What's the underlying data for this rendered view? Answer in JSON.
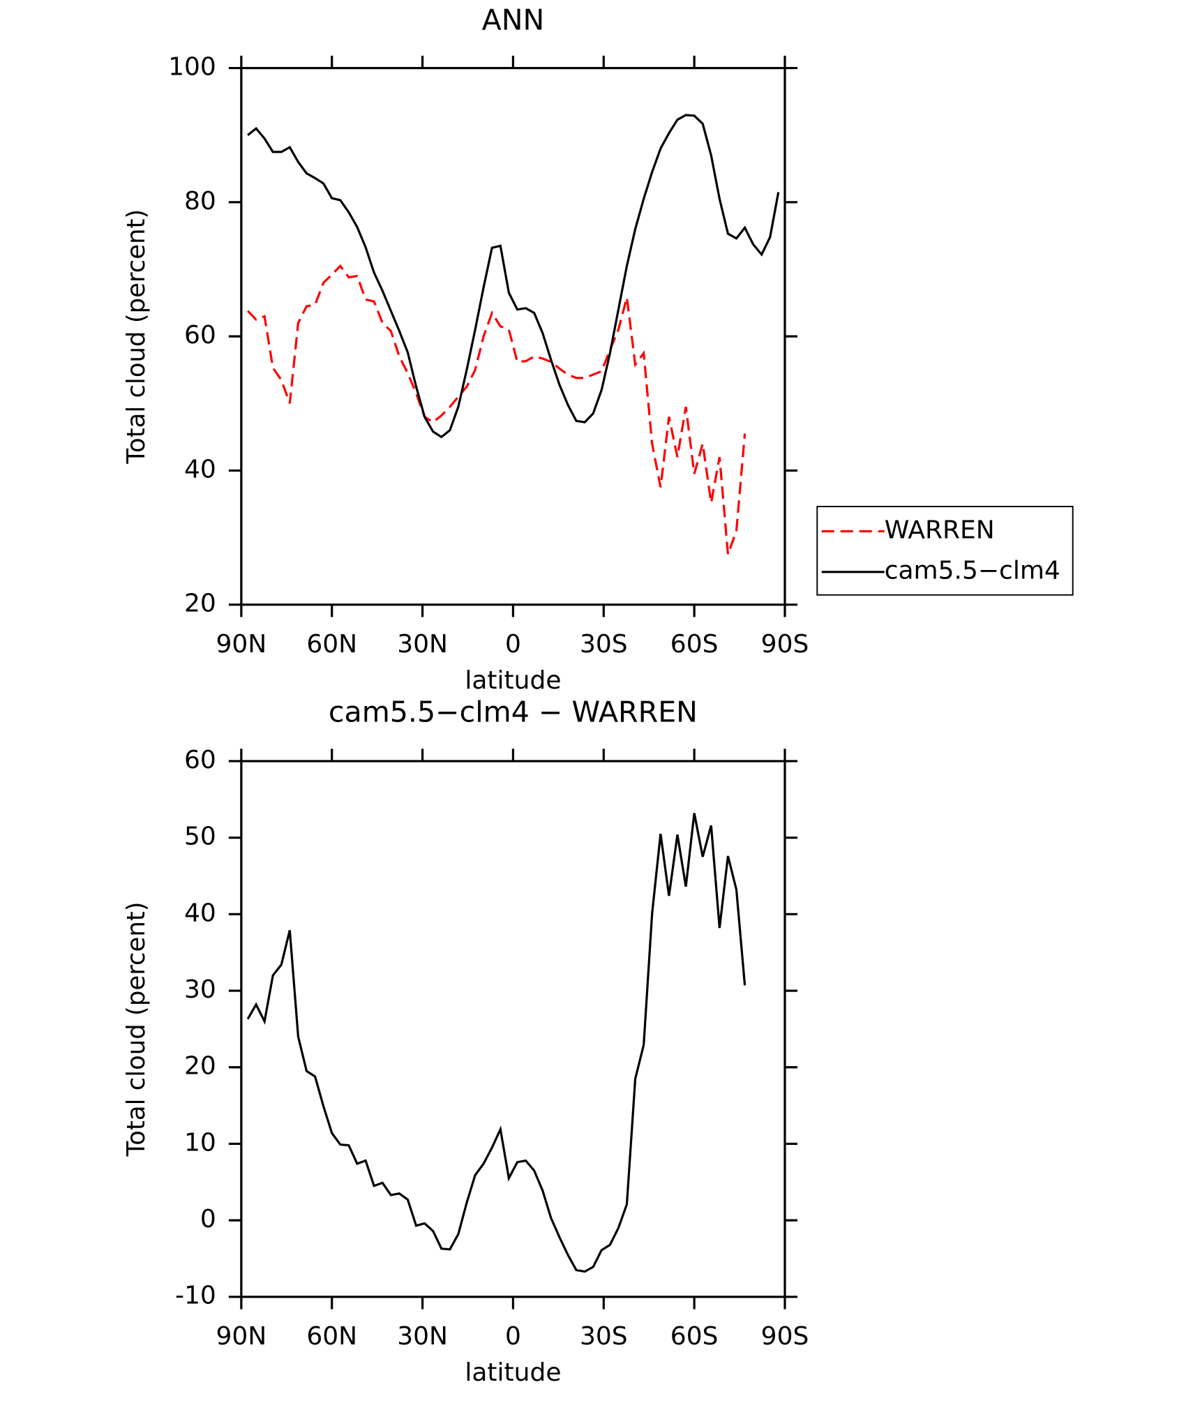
{
  "chart_data": [
    {
      "type": "line",
      "title": "ANN",
      "xlabel": "latitude",
      "ylabel": "Total cloud (percent)",
      "x": [
        87.86,
        85.1,
        82.31,
        79.53,
        76.74,
        73.95,
        71.16,
        68.37,
        65.58,
        62.79,
        60,
        57.21,
        54.42,
        51.63,
        48.84,
        46.04,
        43.25,
        40.46,
        37.67,
        34.88,
        32.09,
        29.3,
        26.51,
        23.72,
        20.93,
        18.14,
        15.35,
        12.56,
        9.77,
        6.98,
        4.19,
        1.4,
        -1.4,
        -4.19,
        -6.98,
        -9.77,
        -12.56,
        -15.35,
        -18.14,
        -20.93,
        -23.72,
        -26.51,
        -29.3,
        -32.09,
        -34.88,
        -37.67,
        -40.46,
        -43.25,
        -46.04,
        -48.84,
        -51.63,
        -54.42,
        -57.21,
        -60,
        -62.79,
        -65.58,
        -68.37,
        -71.16,
        -73.95,
        -76.74,
        -79.53,
        -82.31,
        -85.1,
        -87.86
      ],
      "series": [
        {
          "name": "WARREN",
          "color": "#ff0000",
          "dashed": true,
          "values": [
            63.8,
            62.5,
            63,
            55.3,
            53.5,
            50,
            62,
            64.5,
            64.7,
            68,
            69.2,
            70.5,
            68.8,
            69,
            65.5,
            65.2,
            62,
            60.8,
            57,
            54.5,
            51.5,
            48,
            47.2,
            48.2,
            49.5,
            51,
            52.5,
            55,
            60,
            63.5,
            61.5,
            61,
            56.2,
            56.3,
            57,
            56.7,
            56.2,
            55.2,
            54.3,
            53.8,
            53.8,
            54.3,
            54.8,
            58,
            61,
            65.8,
            55.8,
            57.5,
            44,
            37.5,
            48,
            42,
            49.5,
            39.5,
            44,
            35.2,
            42,
            27.5,
            31,
            45.5,
            null,
            null,
            null,
            null
          ]
        },
        {
          "name": "cam5.5−clm4",
          "color": "#000000",
          "dashed": false,
          "values": [
            90,
            91,
            89.5,
            87.5,
            87.5,
            88.2,
            86,
            84.3,
            83.6,
            82.8,
            80.6,
            80.3,
            78.5,
            76.3,
            73.3,
            69.5,
            66.8,
            63.8,
            60.8,
            57.6,
            52.5,
            48,
            45.8,
            45,
            46,
            49.5,
            55,
            61,
            67.3,
            73.2,
            73.5,
            66.5,
            64,
            64.2,
            63.5,
            60.5,
            56.5,
            52.8,
            49.8,
            47.4,
            47.2,
            48.5,
            52,
            57.5,
            64,
            70.5,
            76,
            80.5,
            84.5,
            88,
            90.3,
            92.3,
            93,
            92.9,
            91.7,
            87,
            80.5,
            75.3,
            74.6,
            76.2,
            73.7,
            72.2,
            74.8,
            81.5
          ]
        }
      ],
      "xlim": [
        90,
        -90
      ],
      "xticks": [
        {
          "value": 90,
          "label": "90N"
        },
        {
          "value": 60,
          "label": "60N"
        },
        {
          "value": 30,
          "label": "30N"
        },
        0,
        {
          "value": -30,
          "label": "30S"
        },
        {
          "value": -60,
          "label": "60S"
        },
        {
          "value": -90,
          "label": "90S"
        }
      ],
      "ylim": [
        20,
        100
      ],
      "yticks": [
        20,
        40,
        60,
        80,
        100
      ],
      "legend": "right"
    },
    {
      "type": "line",
      "title": "cam5.5−clm4 − WARREN",
      "xlabel": "latitude",
      "ylabel": "Total cloud (percent)",
      "x": [
        87.86,
        85.1,
        82.31,
        79.53,
        76.74,
        73.95,
        71.16,
        68.37,
        65.58,
        62.79,
        60,
        57.21,
        54.42,
        51.63,
        48.84,
        46.04,
        43.25,
        40.46,
        37.67,
        34.88,
        32.09,
        29.3,
        26.51,
        23.72,
        20.93,
        18.14,
        15.35,
        12.56,
        9.77,
        6.98,
        4.19,
        1.4,
        -1.4,
        -4.19,
        -6.98,
        -9.77,
        -12.56,
        -15.35,
        -18.14,
        -20.93,
        -23.72,
        -26.51,
        -29.3,
        -32.09,
        -34.88,
        -37.67,
        -40.46,
        -43.25,
        -46.04,
        -48.84,
        -51.63,
        -54.42,
        -57.21,
        -60,
        -62.79,
        -65.58,
        -68.37,
        -71.16,
        -73.95,
        -76.74,
        -79.53,
        -82.31,
        -85.1,
        -87.86
      ],
      "series": [
        {
          "color": "#000000",
          "dashed": false,
          "values": [
            26.3,
            28.2,
            26,
            32,
            33.4,
            37.9,
            24,
            19.5,
            18.8,
            14.9,
            11.4,
            9.9,
            9.8,
            7.4,
            7.8,
            4.5,
            4.9,
            3.3,
            3.5,
            2.7,
            -0.7,
            -0.4,
            -1.4,
            -3.7,
            -3.8,
            -1.8,
            2.3,
            5.9,
            7.4,
            9.5,
            11.9,
            5.5,
            7.6,
            7.8,
            6.5,
            3.9,
            0.3,
            -2.2,
            -4.5,
            -6.5,
            -6.7,
            -6.1,
            -3.9,
            -3.2,
            -1,
            2.1,
            18.5,
            22.9,
            40.1,
            50.5,
            42.4,
            50.4,
            43.6,
            53.2,
            47.5,
            51.6,
            38.2,
            47.6,
            43.2,
            30.7,
            null,
            null,
            null,
            null
          ]
        }
      ],
      "xlim": [
        90,
        -90
      ],
      "xticks": [
        {
          "value": 90,
          "label": "90N"
        },
        {
          "value": 60,
          "label": "60N"
        },
        {
          "value": 30,
          "label": "30N"
        },
        0,
        {
          "value": -30,
          "label": "30S"
        },
        {
          "value": -60,
          "label": "60S"
        },
        {
          "value": -90,
          "label": "90S"
        }
      ],
      "ylim": [
        -10,
        60
      ],
      "yticks": [
        -10,
        0,
        10,
        20,
        30,
        40,
        50,
        60
      ]
    }
  ]
}
